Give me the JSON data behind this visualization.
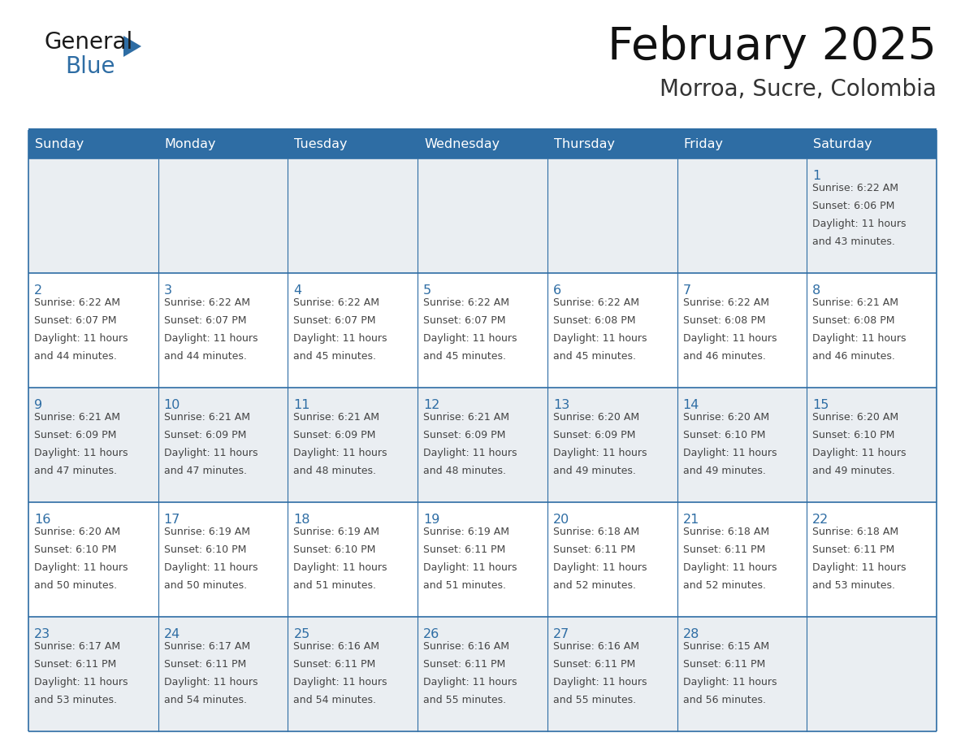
{
  "title": "February 2025",
  "subtitle": "Morroa, Sucre, Colombia",
  "header_color": "#2E6DA4",
  "header_text_color": "#FFFFFF",
  "day_names": [
    "Sunday",
    "Monday",
    "Tuesday",
    "Wednesday",
    "Thursday",
    "Friday",
    "Saturday"
  ],
  "background_color": "#FFFFFF",
  "grid_color": "#2E6DA4",
  "day_number_color": "#2E6DA4",
  "text_color": "#444444",
  "logo_general_color": "#1a1a1a",
  "logo_blue_color": "#2E6DA4",
  "cell_alt_bg": "#EAEEF2",
  "weeks": [
    [
      {
        "day": null,
        "info": null
      },
      {
        "day": null,
        "info": null
      },
      {
        "day": null,
        "info": null
      },
      {
        "day": null,
        "info": null
      },
      {
        "day": null,
        "info": null
      },
      {
        "day": null,
        "info": null
      },
      {
        "day": 1,
        "info": "Sunrise: 6:22 AM\nSunset: 6:06 PM\nDaylight: 11 hours\nand 43 minutes."
      }
    ],
    [
      {
        "day": 2,
        "info": "Sunrise: 6:22 AM\nSunset: 6:07 PM\nDaylight: 11 hours\nand 44 minutes."
      },
      {
        "day": 3,
        "info": "Sunrise: 6:22 AM\nSunset: 6:07 PM\nDaylight: 11 hours\nand 44 minutes."
      },
      {
        "day": 4,
        "info": "Sunrise: 6:22 AM\nSunset: 6:07 PM\nDaylight: 11 hours\nand 45 minutes."
      },
      {
        "day": 5,
        "info": "Sunrise: 6:22 AM\nSunset: 6:07 PM\nDaylight: 11 hours\nand 45 minutes."
      },
      {
        "day": 6,
        "info": "Sunrise: 6:22 AM\nSunset: 6:08 PM\nDaylight: 11 hours\nand 45 minutes."
      },
      {
        "day": 7,
        "info": "Sunrise: 6:22 AM\nSunset: 6:08 PM\nDaylight: 11 hours\nand 46 minutes."
      },
      {
        "day": 8,
        "info": "Sunrise: 6:21 AM\nSunset: 6:08 PM\nDaylight: 11 hours\nand 46 minutes."
      }
    ],
    [
      {
        "day": 9,
        "info": "Sunrise: 6:21 AM\nSunset: 6:09 PM\nDaylight: 11 hours\nand 47 minutes."
      },
      {
        "day": 10,
        "info": "Sunrise: 6:21 AM\nSunset: 6:09 PM\nDaylight: 11 hours\nand 47 minutes."
      },
      {
        "day": 11,
        "info": "Sunrise: 6:21 AM\nSunset: 6:09 PM\nDaylight: 11 hours\nand 48 minutes."
      },
      {
        "day": 12,
        "info": "Sunrise: 6:21 AM\nSunset: 6:09 PM\nDaylight: 11 hours\nand 48 minutes."
      },
      {
        "day": 13,
        "info": "Sunrise: 6:20 AM\nSunset: 6:09 PM\nDaylight: 11 hours\nand 49 minutes."
      },
      {
        "day": 14,
        "info": "Sunrise: 6:20 AM\nSunset: 6:10 PM\nDaylight: 11 hours\nand 49 minutes."
      },
      {
        "day": 15,
        "info": "Sunrise: 6:20 AM\nSunset: 6:10 PM\nDaylight: 11 hours\nand 49 minutes."
      }
    ],
    [
      {
        "day": 16,
        "info": "Sunrise: 6:20 AM\nSunset: 6:10 PM\nDaylight: 11 hours\nand 50 minutes."
      },
      {
        "day": 17,
        "info": "Sunrise: 6:19 AM\nSunset: 6:10 PM\nDaylight: 11 hours\nand 50 minutes."
      },
      {
        "day": 18,
        "info": "Sunrise: 6:19 AM\nSunset: 6:10 PM\nDaylight: 11 hours\nand 51 minutes."
      },
      {
        "day": 19,
        "info": "Sunrise: 6:19 AM\nSunset: 6:11 PM\nDaylight: 11 hours\nand 51 minutes."
      },
      {
        "day": 20,
        "info": "Sunrise: 6:18 AM\nSunset: 6:11 PM\nDaylight: 11 hours\nand 52 minutes."
      },
      {
        "day": 21,
        "info": "Sunrise: 6:18 AM\nSunset: 6:11 PM\nDaylight: 11 hours\nand 52 minutes."
      },
      {
        "day": 22,
        "info": "Sunrise: 6:18 AM\nSunset: 6:11 PM\nDaylight: 11 hours\nand 53 minutes."
      }
    ],
    [
      {
        "day": 23,
        "info": "Sunrise: 6:17 AM\nSunset: 6:11 PM\nDaylight: 11 hours\nand 53 minutes."
      },
      {
        "day": 24,
        "info": "Sunrise: 6:17 AM\nSunset: 6:11 PM\nDaylight: 11 hours\nand 54 minutes."
      },
      {
        "day": 25,
        "info": "Sunrise: 6:16 AM\nSunset: 6:11 PM\nDaylight: 11 hours\nand 54 minutes."
      },
      {
        "day": 26,
        "info": "Sunrise: 6:16 AM\nSunset: 6:11 PM\nDaylight: 11 hours\nand 55 minutes."
      },
      {
        "day": 27,
        "info": "Sunrise: 6:16 AM\nSunset: 6:11 PM\nDaylight: 11 hours\nand 55 minutes."
      },
      {
        "day": 28,
        "info": "Sunrise: 6:15 AM\nSunset: 6:11 PM\nDaylight: 11 hours\nand 56 minutes."
      },
      {
        "day": null,
        "info": null
      }
    ]
  ]
}
